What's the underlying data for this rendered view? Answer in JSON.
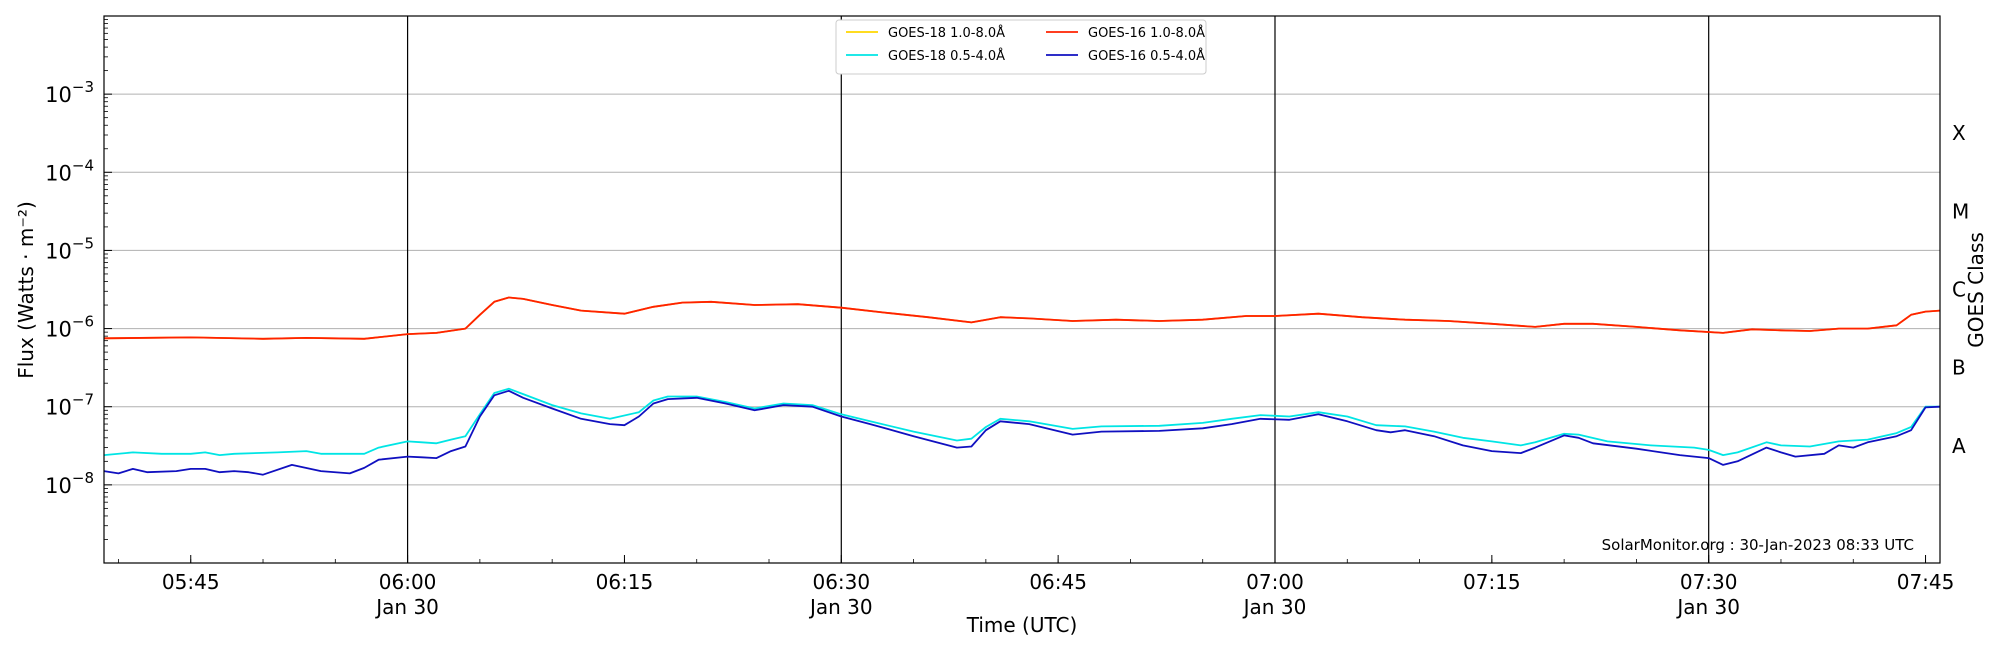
{
  "chart_data": {
    "type": "line",
    "xlabel": "Time (UTC)",
    "ylabel": "Flux (Watts · m⁻²)",
    "ylabel_right": "GOES Class",
    "y_scale": "log",
    "ylim": [
      1e-09,
      0.01
    ],
    "xlim": [
      "05:39",
      "07:46"
    ],
    "grid": "horizontal at decades",
    "x_ticks": [
      {
        "t": "05:45",
        "label": "05:45",
        "date": ""
      },
      {
        "t": "06:00",
        "label": "06:00",
        "date": "Jan 30"
      },
      {
        "t": "06:15",
        "label": "06:15",
        "date": ""
      },
      {
        "t": "06:30",
        "label": "06:30",
        "date": "Jan 30"
      },
      {
        "t": "06:45",
        "label": "06:45",
        "date": ""
      },
      {
        "t": "07:00",
        "label": "07:00",
        "date": "Jan 30"
      },
      {
        "t": "07:15",
        "label": "07:15",
        "date": ""
      },
      {
        "t": "07:30",
        "label": "07:30",
        "date": "Jan 30"
      },
      {
        "t": "07:45",
        "label": "07:45",
        "date": ""
      }
    ],
    "hour_markers": [
      "06:00",
      "06:30",
      "07:00",
      "07:30"
    ],
    "y_ticks": [
      {
        "exp": "−8",
        "value": 1e-08
      },
      {
        "exp": "−7",
        "value": 1e-07
      },
      {
        "exp": "−6",
        "value": 1e-06
      },
      {
        "exp": "−5",
        "value": 1e-05
      },
      {
        "exp": "−4",
        "value": 0.0001
      },
      {
        "exp": "−3",
        "value": 0.001
      }
    ],
    "goes_classes": [
      {
        "label": "A",
        "value": 3.16e-08
      },
      {
        "label": "B",
        "value": 3.16e-07
      },
      {
        "label": "C",
        "value": 3.16e-06
      },
      {
        "label": "M",
        "value": 3.16e-05
      },
      {
        "label": "X",
        "value": 0.000316
      }
    ],
    "legend_position": "top-center",
    "legend_entries": [
      {
        "label": "GOES-18 1.0-8.0Å",
        "color": "#ffd700"
      },
      {
        "label": "GOES-18 0.5-4.0Å",
        "color": "#00e5e5"
      },
      {
        "label": "GOES-16 1.0-8.0Å",
        "color": "#ff2200"
      },
      {
        "label": "GOES-16 0.5-4.0Å",
        "color": "#1010c0"
      }
    ],
    "annotation": "SolarMonitor.org : 30-Jan-2023 08:33 UTC",
    "series": [
      {
        "name": "GOES-18 1.0-8.0Å",
        "color": "#ffa000",
        "points": [
          [
            "05:39",
            7.5e-07
          ],
          [
            "05:45",
            7.7e-07
          ],
          [
            "05:50",
            7.4e-07
          ],
          [
            "05:53",
            7.6e-07
          ],
          [
            "05:57",
            7.4e-07
          ],
          [
            "06:00",
            8.5e-07
          ],
          [
            "06:02",
            8.8e-07
          ],
          [
            "06:04",
            1e-06
          ],
          [
            "06:05",
            1.5e-06
          ],
          [
            "06:06",
            2.2e-06
          ],
          [
            "06:07",
            2.5e-06
          ],
          [
            "06:08",
            2.4e-06
          ],
          [
            "06:10",
            2e-06
          ],
          [
            "06:12",
            1.7e-06
          ],
          [
            "06:15",
            1.55e-06
          ],
          [
            "06:17",
            1.9e-06
          ],
          [
            "06:19",
            2.15e-06
          ],
          [
            "06:21",
            2.2e-06
          ],
          [
            "06:24",
            2e-06
          ],
          [
            "06:27",
            2.05e-06
          ],
          [
            "06:30",
            1.85e-06
          ],
          [
            "06:33",
            1.6e-06
          ],
          [
            "06:36",
            1.4e-06
          ],
          [
            "06:39",
            1.2e-06
          ],
          [
            "06:41",
            1.4e-06
          ],
          [
            "06:43",
            1.35e-06
          ],
          [
            "06:46",
            1.25e-06
          ],
          [
            "06:49",
            1.3e-06
          ],
          [
            "06:52",
            1.25e-06
          ],
          [
            "06:55",
            1.3e-06
          ],
          [
            "06:58",
            1.45e-06
          ],
          [
            "07:00",
            1.45e-06
          ],
          [
            "07:03",
            1.55e-06
          ],
          [
            "07:06",
            1.4e-06
          ],
          [
            "07:09",
            1.3e-06
          ],
          [
            "07:12",
            1.25e-06
          ],
          [
            "07:15",
            1.15e-06
          ],
          [
            "07:18",
            1.05e-06
          ],
          [
            "07:20",
            1.15e-06
          ],
          [
            "07:22",
            1.15e-06
          ],
          [
            "07:25",
            1.05e-06
          ],
          [
            "07:28",
            9.5e-07
          ],
          [
            "07:31",
            8.8e-07
          ],
          [
            "07:33",
            9.8e-07
          ],
          [
            "07:35",
            9.5e-07
          ],
          [
            "07:37",
            9.3e-07
          ],
          [
            "07:39",
            1e-06
          ],
          [
            "07:41",
            1e-06
          ],
          [
            "07:43",
            1.1e-06
          ],
          [
            "07:44",
            1.5e-06
          ],
          [
            "07:45",
            1.65e-06
          ],
          [
            "07:46",
            1.7e-06
          ]
        ]
      },
      {
        "name": "GOES-16 1.0-8.0Å",
        "color": "#ff2200",
        "points": [
          [
            "05:39",
            7.5e-07
          ],
          [
            "05:45",
            7.7e-07
          ],
          [
            "05:50",
            7.4e-07
          ],
          [
            "05:53",
            7.6e-07
          ],
          [
            "05:57",
            7.4e-07
          ],
          [
            "06:00",
            8.5e-07
          ],
          [
            "06:02",
            8.8e-07
          ],
          [
            "06:04",
            1e-06
          ],
          [
            "06:05",
            1.5e-06
          ],
          [
            "06:06",
            2.2e-06
          ],
          [
            "06:07",
            2.5e-06
          ],
          [
            "06:08",
            2.4e-06
          ],
          [
            "06:10",
            2e-06
          ],
          [
            "06:12",
            1.7e-06
          ],
          [
            "06:15",
            1.55e-06
          ],
          [
            "06:17",
            1.9e-06
          ],
          [
            "06:19",
            2.15e-06
          ],
          [
            "06:21",
            2.2e-06
          ],
          [
            "06:24",
            2e-06
          ],
          [
            "06:27",
            2.05e-06
          ],
          [
            "06:30",
            1.85e-06
          ],
          [
            "06:33",
            1.6e-06
          ],
          [
            "06:36",
            1.4e-06
          ],
          [
            "06:39",
            1.2e-06
          ],
          [
            "06:41",
            1.4e-06
          ],
          [
            "06:43",
            1.35e-06
          ],
          [
            "06:46",
            1.25e-06
          ],
          [
            "06:49",
            1.3e-06
          ],
          [
            "06:52",
            1.25e-06
          ],
          [
            "06:55",
            1.3e-06
          ],
          [
            "06:58",
            1.45e-06
          ],
          [
            "07:00",
            1.45e-06
          ],
          [
            "07:03",
            1.55e-06
          ],
          [
            "07:06",
            1.4e-06
          ],
          [
            "07:09",
            1.3e-06
          ],
          [
            "07:12",
            1.25e-06
          ],
          [
            "07:15",
            1.15e-06
          ],
          [
            "07:18",
            1.05e-06
          ],
          [
            "07:20",
            1.15e-06
          ],
          [
            "07:22",
            1.15e-06
          ],
          [
            "07:25",
            1.05e-06
          ],
          [
            "07:28",
            9.5e-07
          ],
          [
            "07:31",
            8.8e-07
          ],
          [
            "07:33",
            9.8e-07
          ],
          [
            "07:35",
            9.5e-07
          ],
          [
            "07:37",
            9.3e-07
          ],
          [
            "07:39",
            1e-06
          ],
          [
            "07:41",
            1e-06
          ],
          [
            "07:43",
            1.1e-06
          ],
          [
            "07:44",
            1.5e-06
          ],
          [
            "07:45",
            1.65e-06
          ],
          [
            "07:46",
            1.7e-06
          ]
        ]
      },
      {
        "name": "GOES-18 0.5-4.0Å",
        "color": "#00e5e5",
        "points": [
          [
            "05:39",
            2.4e-08
          ],
          [
            "05:41",
            2.6e-08
          ],
          [
            "05:43",
            2.5e-08
          ],
          [
            "05:45",
            2.5e-08
          ],
          [
            "05:46",
            2.6e-08
          ],
          [
            "05:47",
            2.4e-08
          ],
          [
            "05:48",
            2.5e-08
          ],
          [
            "05:51",
            2.6e-08
          ],
          [
            "05:53",
            2.7e-08
          ],
          [
            "05:54",
            2.5e-08
          ],
          [
            "05:57",
            2.5e-08
          ],
          [
            "05:58",
            3e-08
          ],
          [
            "06:00",
            3.6e-08
          ],
          [
            "06:01",
            3.5e-08
          ],
          [
            "06:02",
            3.4e-08
          ],
          [
            "06:03",
            3.8e-08
          ],
          [
            "06:04",
            4.2e-08
          ],
          [
            "06:05",
            8e-08
          ],
          [
            "06:06",
            1.5e-07
          ],
          [
            "06:07",
            1.7e-07
          ],
          [
            "06:08",
            1.45e-07
          ],
          [
            "06:10",
            1.05e-07
          ],
          [
            "06:12",
            8.2e-08
          ],
          [
            "06:14",
            7e-08
          ],
          [
            "06:16",
            8.5e-08
          ],
          [
            "06:17",
            1.2e-07
          ],
          [
            "06:18",
            1.35e-07
          ],
          [
            "06:20",
            1.35e-07
          ],
          [
            "06:22",
            1.15e-07
          ],
          [
            "06:24",
            9.5e-08
          ],
          [
            "06:26",
            1.1e-07
          ],
          [
            "06:28",
            1.05e-07
          ],
          [
            "06:30",
            8e-08
          ],
          [
            "06:32",
            6.5e-08
          ],
          [
            "06:35",
            4.8e-08
          ],
          [
            "06:38",
            3.7e-08
          ],
          [
            "06:39",
            3.9e-08
          ],
          [
            "06:40",
            5.5e-08
          ],
          [
            "06:41",
            7e-08
          ],
          [
            "06:43",
            6.5e-08
          ],
          [
            "06:46",
            5.2e-08
          ],
          [
            "06:48",
            5.6e-08
          ],
          [
            "06:52",
            5.7e-08
          ],
          [
            "06:55",
            6.2e-08
          ],
          [
            "06:57",
            7e-08
          ],
          [
            "06:59",
            7.8e-08
          ],
          [
            "07:01",
            7.5e-08
          ],
          [
            "07:03",
            8.5e-08
          ],
          [
            "07:05",
            7.5e-08
          ],
          [
            "07:07",
            5.8e-08
          ],
          [
            "07:09",
            5.6e-08
          ],
          [
            "07:11",
            4.8e-08
          ],
          [
            "07:13",
            4e-08
          ],
          [
            "07:15",
            3.6e-08
          ],
          [
            "07:17",
            3.2e-08
          ],
          [
            "07:18",
            3.5e-08
          ],
          [
            "07:20",
            4.5e-08
          ],
          [
            "07:21",
            4.4e-08
          ],
          [
            "07:23",
            3.6e-08
          ],
          [
            "07:26",
            3.2e-08
          ],
          [
            "07:29",
            3e-08
          ],
          [
            "07:30",
            2.8e-08
          ],
          [
            "07:31",
            2.4e-08
          ],
          [
            "07:32",
            2.6e-08
          ],
          [
            "07:34",
            3.5e-08
          ],
          [
            "07:35",
            3.2e-08
          ],
          [
            "07:37",
            3.1e-08
          ],
          [
            "07:39",
            3.6e-08
          ],
          [
            "07:41",
            3.8e-08
          ],
          [
            "07:43",
            4.6e-08
          ],
          [
            "07:44",
            5.5e-08
          ],
          [
            "07:45",
            1e-07
          ],
          [
            "07:46",
            1e-07
          ]
        ]
      },
      {
        "name": "GOES-16 0.5-4.0Å",
        "color": "#1010c0",
        "points": [
          [
            "05:39",
            1.5e-08
          ],
          [
            "05:40",
            1.4e-08
          ],
          [
            "05:41",
            1.6e-08
          ],
          [
            "05:42",
            1.45e-08
          ],
          [
            "05:44",
            1.5e-08
          ],
          [
            "05:45",
            1.6e-08
          ],
          [
            "05:46",
            1.6e-08
          ],
          [
            "05:47",
            1.45e-08
          ],
          [
            "05:48",
            1.5e-08
          ],
          [
            "05:49",
            1.45e-08
          ],
          [
            "05:50",
            1.35e-08
          ],
          [
            "05:52",
            1.8e-08
          ],
          [
            "05:54",
            1.5e-08
          ],
          [
            "05:56",
            1.4e-08
          ],
          [
            "05:57",
            1.65e-08
          ],
          [
            "05:58",
            2.1e-08
          ],
          [
            "06:00",
            2.3e-08
          ],
          [
            "06:01",
            2.25e-08
          ],
          [
            "06:02",
            2.2e-08
          ],
          [
            "06:03",
            2.7e-08
          ],
          [
            "06:04",
            3.1e-08
          ],
          [
            "06:05",
            7.5e-08
          ],
          [
            "06:06",
            1.4e-07
          ],
          [
            "06:07",
            1.6e-07
          ],
          [
            "06:08",
            1.3e-07
          ],
          [
            "06:10",
            9.5e-08
          ],
          [
            "06:12",
            7e-08
          ],
          [
            "06:14",
            6e-08
          ],
          [
            "06:15",
            5.8e-08
          ],
          [
            "06:16",
            7.5e-08
          ],
          [
            "06:17",
            1.1e-07
          ],
          [
            "06:18",
            1.25e-07
          ],
          [
            "06:20",
            1.3e-07
          ],
          [
            "06:22",
            1.1e-07
          ],
          [
            "06:24",
            9e-08
          ],
          [
            "06:26",
            1.05e-07
          ],
          [
            "06:28",
            1e-07
          ],
          [
            "06:30",
            7.5e-08
          ],
          [
            "06:32",
            6e-08
          ],
          [
            "06:35",
            4.2e-08
          ],
          [
            "06:38",
            3e-08
          ],
          [
            "06:39",
            3.1e-08
          ],
          [
            "06:40",
            5e-08
          ],
          [
            "06:41",
            6.5e-08
          ],
          [
            "06:43",
            6e-08
          ],
          [
            "06:46",
            4.4e-08
          ],
          [
            "06:48",
            4.8e-08
          ],
          [
            "06:52",
            4.9e-08
          ],
          [
            "06:55",
            5.3e-08
          ],
          [
            "06:57",
            6e-08
          ],
          [
            "06:59",
            7e-08
          ],
          [
            "07:01",
            6.8e-08
          ],
          [
            "07:03",
            8e-08
          ],
          [
            "07:05",
            6.5e-08
          ],
          [
            "07:07",
            5e-08
          ],
          [
            "07:08",
            4.7e-08
          ],
          [
            "07:09",
            5e-08
          ],
          [
            "07:11",
            4.2e-08
          ],
          [
            "07:13",
            3.2e-08
          ],
          [
            "07:15",
            2.7e-08
          ],
          [
            "07:17",
            2.55e-08
          ],
          [
            "07:18",
            3e-08
          ],
          [
            "07:20",
            4.3e-08
          ],
          [
            "07:21",
            4e-08
          ],
          [
            "07:22",
            3.4e-08
          ],
          [
            "07:25",
            2.9e-08
          ],
          [
            "07:28",
            2.4e-08
          ],
          [
            "07:30",
            2.2e-08
          ],
          [
            "07:31",
            1.8e-08
          ],
          [
            "07:32",
            2e-08
          ],
          [
            "07:34",
            3e-08
          ],
          [
            "07:35",
            2.6e-08
          ],
          [
            "07:36",
            2.3e-08
          ],
          [
            "07:38",
            2.5e-08
          ],
          [
            "07:39",
            3.2e-08
          ],
          [
            "07:40",
            3e-08
          ],
          [
            "07:41",
            3.5e-08
          ],
          [
            "07:43",
            4.2e-08
          ],
          [
            "07:44",
            5e-08
          ],
          [
            "07:45",
            9.8e-08
          ],
          [
            "07:46",
            1e-07
          ]
        ]
      }
    ]
  }
}
